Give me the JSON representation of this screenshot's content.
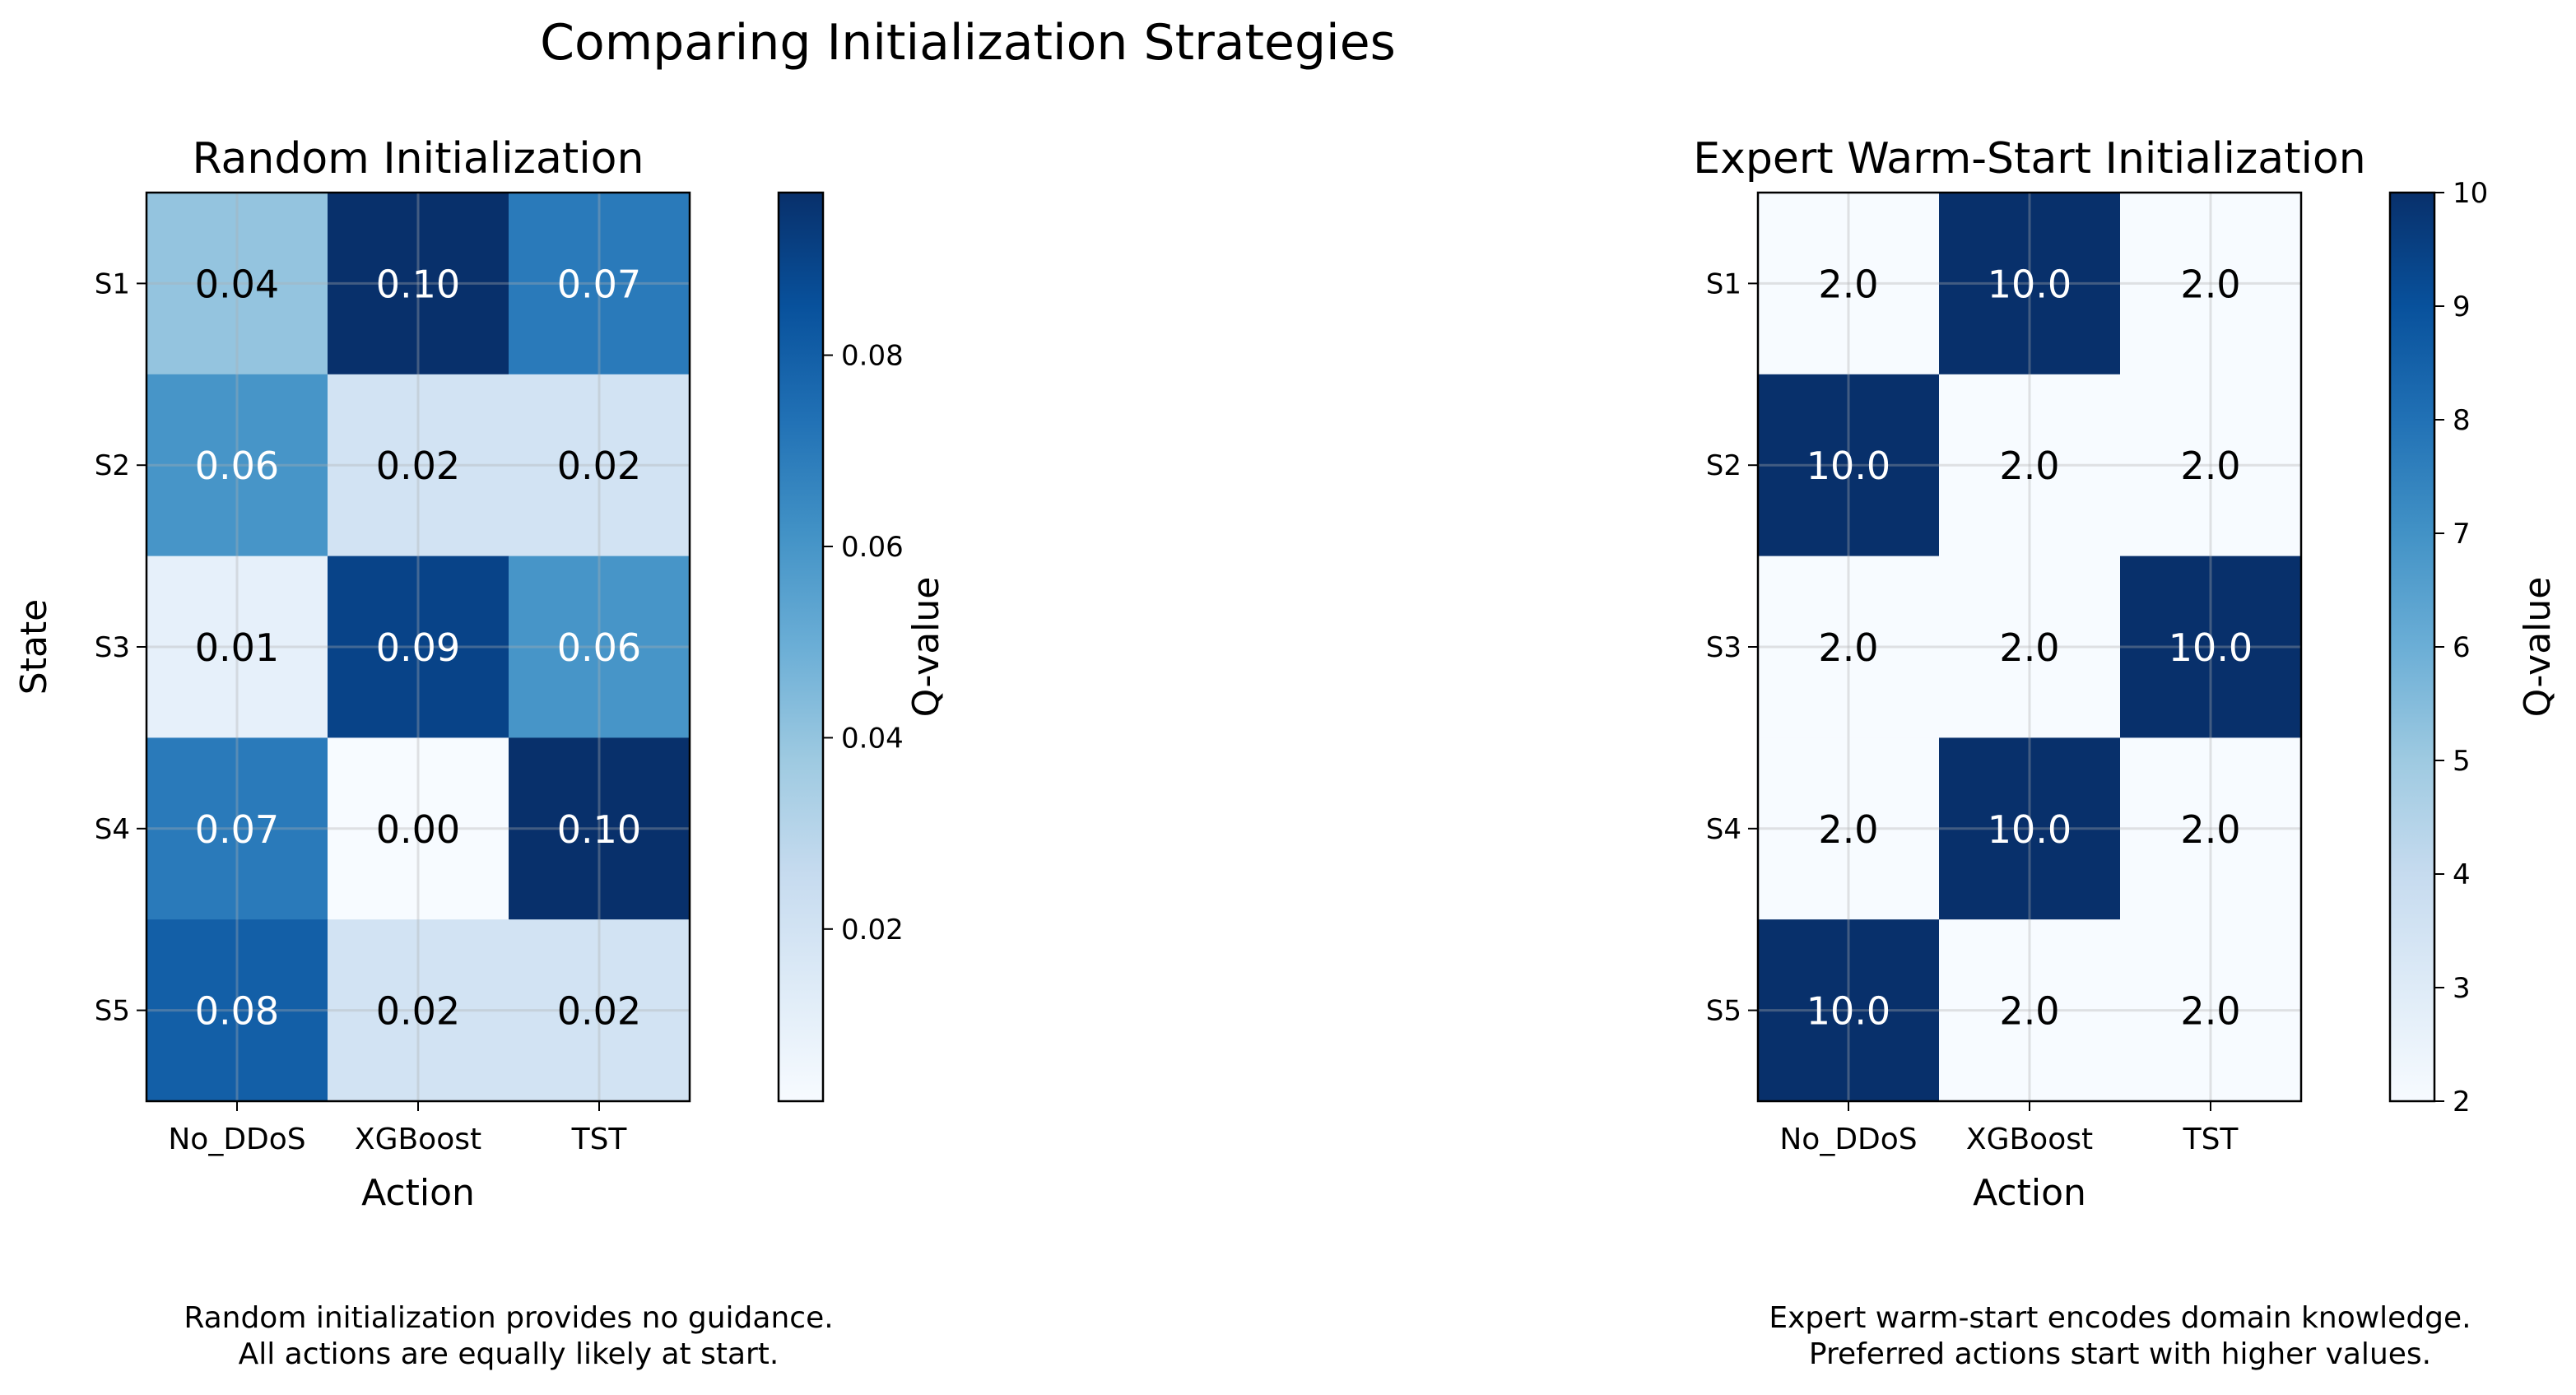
{
  "figure": {
    "title": "Comparing Initialization Strategies"
  },
  "chart_data": [
    {
      "type": "heatmap",
      "title": "Random Initialization",
      "xlabel": "Action",
      "ylabel": "State",
      "x_categories": [
        "No_DDoS",
        "XGBoost",
        "TST"
      ],
      "y_categories": [
        "S1",
        "S2",
        "S3",
        "S4",
        "S5"
      ],
      "values": [
        [
          0.04,
          0.1,
          0.07
        ],
        [
          0.06,
          0.02,
          0.02
        ],
        [
          0.01,
          0.09,
          0.06
        ],
        [
          0.07,
          0.0,
          0.1
        ],
        [
          0.08,
          0.02,
          0.02
        ]
      ],
      "value_format_decimals": 2,
      "colormap": "Blues",
      "colorbar": {
        "label": "Q-value",
        "min": 0.002,
        "max": 0.097,
        "ticks": [
          0.02,
          0.04,
          0.06,
          0.08
        ],
        "tick_labels": [
          "0.02",
          "0.04",
          "0.06",
          "0.08"
        ]
      },
      "grid": true,
      "caption_lines": [
        "Random initialization provides no guidance.",
        "All actions are equally likely at start."
      ]
    },
    {
      "type": "heatmap",
      "title": "Expert Warm-Start Initialization",
      "xlabel": "Action",
      "ylabel": "",
      "x_categories": [
        "No_DDoS",
        "XGBoost",
        "TST"
      ],
      "y_categories": [
        "S1",
        "S2",
        "S3",
        "S4",
        "S5"
      ],
      "values": [
        [
          2.0,
          10.0,
          2.0
        ],
        [
          10.0,
          2.0,
          2.0
        ],
        [
          2.0,
          2.0,
          10.0
        ],
        [
          2.0,
          10.0,
          2.0
        ],
        [
          10.0,
          2.0,
          2.0
        ]
      ],
      "value_format_decimals": 1,
      "colormap": "Blues",
      "colorbar": {
        "label": "Q-value",
        "min": 2,
        "max": 10,
        "ticks": [
          2,
          3,
          4,
          5,
          6,
          7,
          8,
          9,
          10
        ],
        "tick_labels": [
          "2",
          "3",
          "4",
          "5",
          "6",
          "7",
          "8",
          "9",
          "10"
        ]
      },
      "grid": true,
      "caption_lines": [
        "Expert warm-start encodes domain knowledge.",
        "Preferred actions start with higher values."
      ]
    }
  ]
}
